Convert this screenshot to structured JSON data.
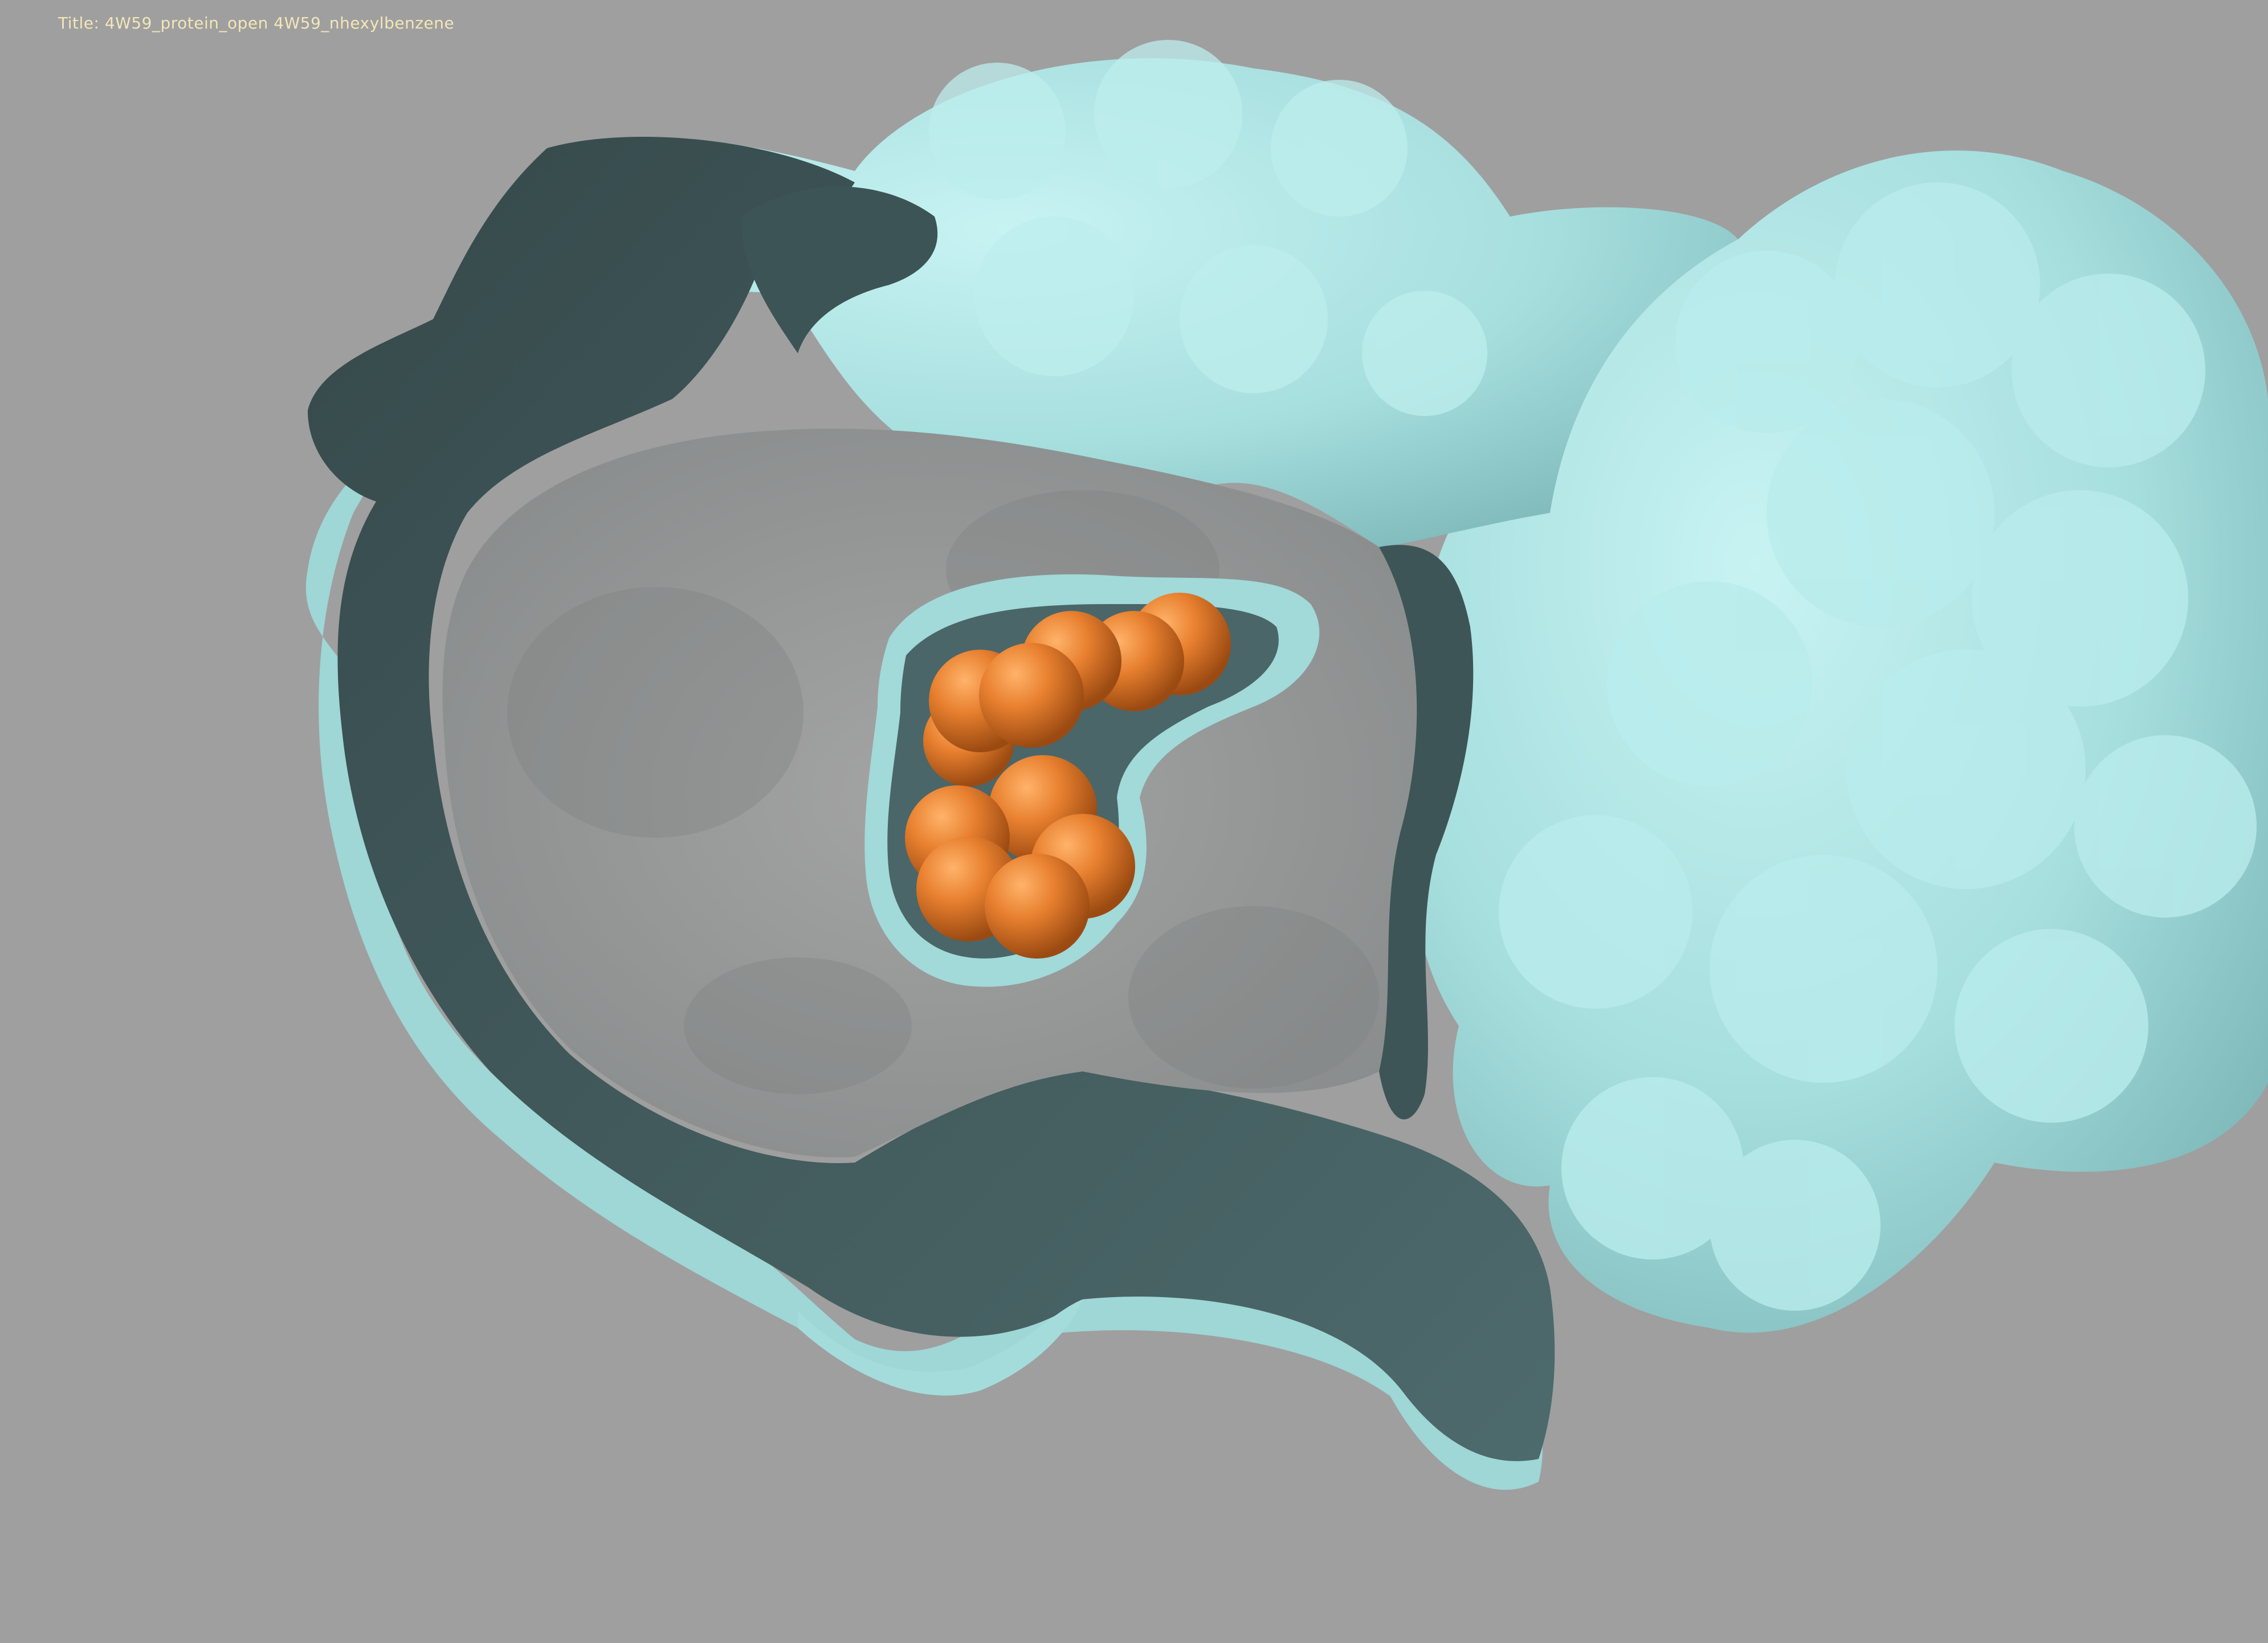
{
  "window": {
    "title_prefix": "Title:",
    "title": "4W59_protein_open 4W59_nhexylbenzene"
  },
  "scene": {
    "background_color": "#9f9f9f",
    "protein_surface_color": "#a9e3e3",
    "protein_inner_color": "#3f5a5c",
    "ligand_color": "#e07a2a"
  }
}
